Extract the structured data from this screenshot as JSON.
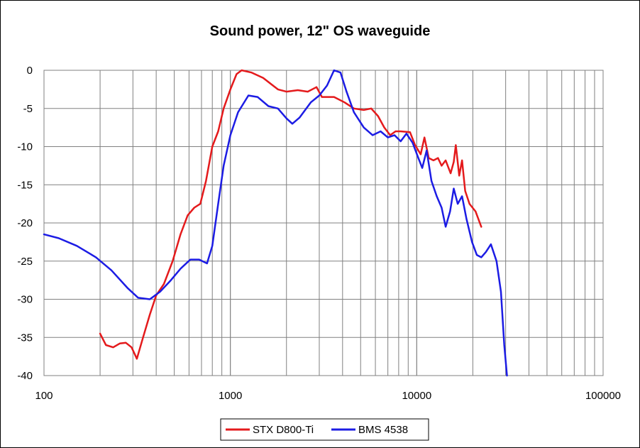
{
  "chart_data": {
    "type": "line",
    "title": "Sound power, 12\" OS waveguide",
    "xlabel": "",
    "ylabel": "",
    "x_scale": "log",
    "xlim": [
      100,
      100000
    ],
    "ylim": [
      -40,
      0
    ],
    "x_ticks": [
      100,
      1000,
      10000,
      100000
    ],
    "x_tick_labels": [
      "100",
      "1000",
      "10000",
      "100000"
    ],
    "y_ticks": [
      0,
      -5,
      -10,
      -15,
      -20,
      -25,
      -30,
      -35,
      -40
    ],
    "y_tick_labels": [
      "0",
      "-5",
      "-10",
      "-15",
      "-20",
      "-25",
      "-30",
      "-35",
      "-40"
    ],
    "grid": true,
    "legend_position": "bottom-center",
    "series": [
      {
        "name": "STX D800-Ti",
        "color": "#e41a1c",
        "points": [
          [
            200,
            -34.5
          ],
          [
            215,
            -36
          ],
          [
            235,
            -36.3
          ],
          [
            255,
            -35.8
          ],
          [
            275,
            -35.7
          ],
          [
            295,
            -36.3
          ],
          [
            315,
            -37.8
          ],
          [
            340,
            -35
          ],
          [
            370,
            -32
          ],
          [
            400,
            -29.5
          ],
          [
            440,
            -28
          ],
          [
            490,
            -25
          ],
          [
            540,
            -21.5
          ],
          [
            590,
            -19
          ],
          [
            640,
            -18
          ],
          [
            690,
            -17.5
          ],
          [
            740,
            -14.5
          ],
          [
            800,
            -10
          ],
          [
            860,
            -8
          ],
          [
            920,
            -5
          ],
          [
            1000,
            -2.5
          ],
          [
            1080,
            -0.5
          ],
          [
            1150,
            0
          ],
          [
            1300,
            -0.3
          ],
          [
            1500,
            -1
          ],
          [
            1800,
            -2.5
          ],
          [
            2000,
            -2.8
          ],
          [
            2300,
            -2.6
          ],
          [
            2600,
            -2.8
          ],
          [
            2900,
            -2.2
          ],
          [
            3100,
            -3.5
          ],
          [
            3600,
            -3.5
          ],
          [
            4100,
            -4.2
          ],
          [
            4600,
            -5
          ],
          [
            5200,
            -5.2
          ],
          [
            5700,
            -5
          ],
          [
            6200,
            -6
          ],
          [
            6700,
            -7.5
          ],
          [
            7200,
            -8.5
          ],
          [
            7700,
            -8
          ],
          [
            8200,
            -8
          ],
          [
            9200,
            -8.1
          ],
          [
            9800,
            -9.8
          ],
          [
            10500,
            -11
          ],
          [
            11000,
            -8.8
          ],
          [
            11600,
            -11.5
          ],
          [
            12300,
            -11.8
          ],
          [
            13000,
            -11.5
          ],
          [
            13600,
            -12.5
          ],
          [
            14300,
            -11.8
          ],
          [
            15200,
            -13.5
          ],
          [
            15800,
            -12
          ],
          [
            16200,
            -9.8
          ],
          [
            16900,
            -13.8
          ],
          [
            17500,
            -11.8
          ],
          [
            18200,
            -15.8
          ],
          [
            19200,
            -17.5
          ],
          [
            20700,
            -18.5
          ],
          [
            22200,
            -20.5
          ]
        ]
      },
      {
        "name": "BMS 4538",
        "color": "#1c1ce4",
        "points": [
          [
            100,
            -21.5
          ],
          [
            120,
            -22
          ],
          [
            150,
            -23
          ],
          [
            190,
            -24.5
          ],
          [
            230,
            -26.2
          ],
          [
            280,
            -28.5
          ],
          [
            320,
            -29.8
          ],
          [
            370,
            -30
          ],
          [
            420,
            -29
          ],
          [
            480,
            -27.5
          ],
          [
            540,
            -26
          ],
          [
            610,
            -24.8
          ],
          [
            680,
            -24.8
          ],
          [
            750,
            -25.3
          ],
          [
            800,
            -23
          ],
          [
            860,
            -17.5
          ],
          [
            920,
            -12.5
          ],
          [
            1000,
            -8.5
          ],
          [
            1100,
            -5.5
          ],
          [
            1250,
            -3.3
          ],
          [
            1400,
            -3.5
          ],
          [
            1600,
            -4.7
          ],
          [
            1800,
            -5
          ],
          [
            2000,
            -6.3
          ],
          [
            2150,
            -7
          ],
          [
            2350,
            -6.2
          ],
          [
            2700,
            -4.2
          ],
          [
            3000,
            -3.3
          ],
          [
            3300,
            -2
          ],
          [
            3600,
            0
          ],
          [
            3900,
            -0.3
          ],
          [
            4200,
            -2.8
          ],
          [
            4600,
            -5.5
          ],
          [
            5200,
            -7.5
          ],
          [
            5800,
            -8.5
          ],
          [
            6400,
            -8
          ],
          [
            7000,
            -8.8
          ],
          [
            7600,
            -8.5
          ],
          [
            8200,
            -9.3
          ],
          [
            8800,
            -8.3
          ],
          [
            9500,
            -9.5
          ],
          [
            10200,
            -11.5
          ],
          [
            10700,
            -12.8
          ],
          [
            11300,
            -10.5
          ],
          [
            12000,
            -14.5
          ],
          [
            12800,
            -16.5
          ],
          [
            13600,
            -18
          ],
          [
            14300,
            -20.5
          ],
          [
            15100,
            -18.5
          ],
          [
            15800,
            -15.5
          ],
          [
            16600,
            -17.5
          ],
          [
            17500,
            -16.5
          ],
          [
            18500,
            -19.5
          ],
          [
            19800,
            -22.5
          ],
          [
            21000,
            -24.2
          ],
          [
            22200,
            -24.5
          ],
          [
            23500,
            -23.8
          ],
          [
            25000,
            -22.8
          ],
          [
            26800,
            -25
          ],
          [
            28300,
            -29
          ],
          [
            29500,
            -36
          ],
          [
            30500,
            -40
          ]
        ]
      }
    ]
  }
}
